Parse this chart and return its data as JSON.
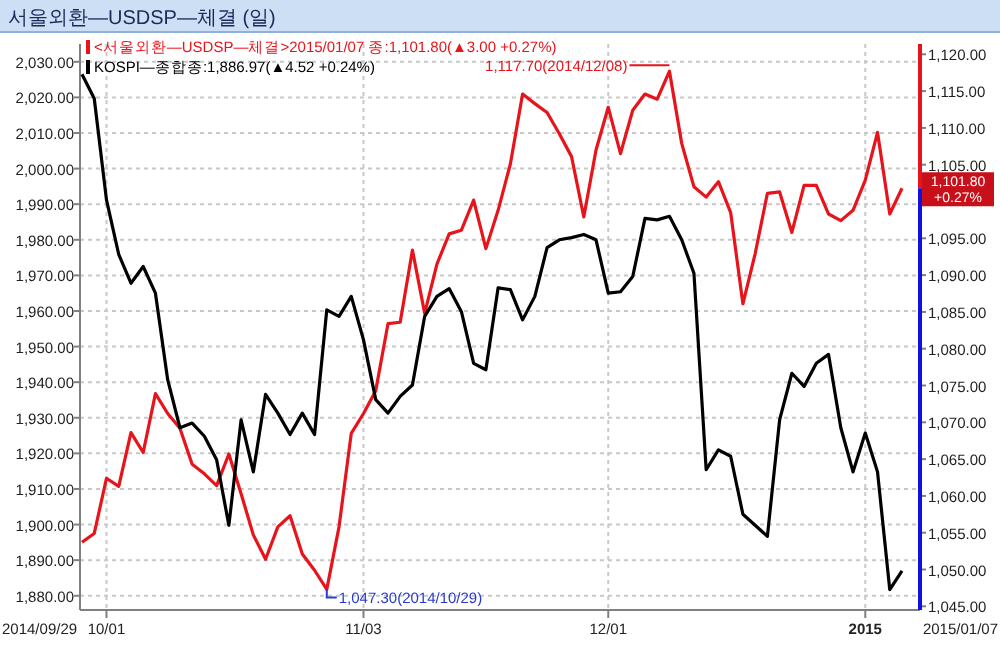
{
  "chart_data": {
    "type": "line",
    "title": "서울외환—USDSP—체결 (일)",
    "categories": [
      null,
      null,
      "10/01",
      null,
      null,
      null,
      null,
      null,
      null,
      null,
      null,
      null,
      null,
      null,
      null,
      null,
      null,
      null,
      null,
      null,
      null,
      null,
      null,
      "11/03",
      null,
      null,
      null,
      null,
      null,
      null,
      null,
      null,
      null,
      null,
      null,
      null,
      null,
      null,
      null,
      null,
      null,
      null,
      null,
      "12/01",
      null,
      null,
      null,
      null,
      null,
      null,
      null,
      null,
      null,
      null,
      null,
      null,
      null,
      null,
      null,
      null,
      null,
      null,
      null,
      null,
      "2015",
      null,
      null,
      null
    ],
    "series": [
      {
        "name": "<서울외환—USDSP—체결>",
        "color": "#e8141c",
        "axis": "y2",
        "values": [
          1053.7,
          1054.9,
          1062.4,
          1061.3,
          1068.6,
          1065.9,
          1073.9,
          1071.2,
          1069.2,
          1064.3,
          1063.0,
          1061.4,
          1065.7,
          1060.3,
          1054.7,
          1051.4,
          1055.8,
          1057.3,
          1052.1,
          1049.9,
          1047.3,
          1055.8,
          1068.5,
          1071.2,
          1074.3,
          1083.4,
          1083.6,
          1093.4,
          1084.8,
          1091.5,
          1095.6,
          1096.1,
          1100.2,
          1093.6,
          1098.8,
          1105.1,
          1114.6,
          1113.3,
          1112.1,
          1109.2,
          1106.1,
          1097.9,
          1107.0,
          1112.8,
          1106.5,
          1112.4,
          1114.6,
          1113.9,
          1117.7,
          1107.9,
          1102.0,
          1100.6,
          1102.7,
          1098.5,
          1086.1,
          1092.9,
          1101.1,
          1101.3,
          1095.8,
          1102.2,
          1102.2,
          1098.3,
          1097.4,
          1098.8,
          1102.9,
          1109.4,
          1098.3,
          1101.8
        ]
      },
      {
        "name": "KOSPI—종합",
        "color": "#000000",
        "values": [
          2026.5,
          2019.7,
          1991.2,
          1975.9,
          1967.8,
          1972.5,
          1965.0,
          1940.7,
          1927.2,
          1928.5,
          1924.8,
          1918.2,
          1899.8,
          1929.4,
          1914.8,
          1936.6,
          1931.3,
          1925.3,
          1931.3,
          1925.3,
          1960.3,
          1958.5,
          1964.1,
          1951.9,
          1935.1,
          1931.3,
          1936.0,
          1939.2,
          1958.5,
          1964.1,
          1966.3,
          1959.8,
          1945.3,
          1943.5,
          1966.5,
          1966.0,
          1957.5,
          1964.1,
          1977.8,
          1980.0,
          1980.6,
          1981.5,
          1980.0,
          1965.0,
          1965.4,
          1969.7,
          1986.0,
          1985.6,
          1986.6,
          1980.0,
          1970.6,
          1915.4,
          1921.0,
          1919.2,
          1902.9,
          1899.8,
          1896.7,
          1929.4,
          1942.5,
          1938.8,
          1945.3,
          1947.8,
          1927.2,
          1914.8,
          1925.7,
          1914.8,
          1881.7,
          1887.0
        ]
      }
    ],
    "ylim": [
      1876,
      2035
    ],
    "yticks": [
      {
        "value": 1880,
        "label": "1,880.00"
      },
      {
        "value": 1890,
        "label": "1,890.00"
      },
      {
        "value": 1900,
        "label": "1,900.00"
      },
      {
        "value": 1910,
        "label": "1,910.00"
      },
      {
        "value": 1920,
        "label": "1,920.00"
      },
      {
        "value": 1930,
        "label": "1,930.00"
      },
      {
        "value": 1940,
        "label": "1,940.00"
      },
      {
        "value": 1950,
        "label": "1,950.00"
      },
      {
        "value": 1960,
        "label": "1,960.00"
      },
      {
        "value": 1970,
        "label": "1,970.00"
      },
      {
        "value": 1980,
        "label": "1,980.00"
      },
      {
        "value": 1990,
        "label": "1,990.00"
      },
      {
        "value": 2000,
        "label": "2,000.00"
      },
      {
        "value": 2010,
        "label": "2,010.00"
      },
      {
        "value": 2020,
        "label": "2,020.00"
      },
      {
        "value": 2030,
        "label": "2,030.00"
      }
    ],
    "y2lim": [
      1044.5,
      1121.4
    ],
    "y2ticks": [
      {
        "value": 1045,
        "label": "1,045.00"
      },
      {
        "value": 1050,
        "label": "1,050.00"
      },
      {
        "value": 1055,
        "label": "1,055.00"
      },
      {
        "value": 1060,
        "label": "1,060.00"
      },
      {
        "value": 1065,
        "label": "1,065.00"
      },
      {
        "value": 1070,
        "label": "1,070.00"
      },
      {
        "value": 1075,
        "label": "1,075.00"
      },
      {
        "value": 1080,
        "label": "1,080.00"
      },
      {
        "value": 1085,
        "label": "1,085.00"
      },
      {
        "value": 1090,
        "label": "1,090.00"
      },
      {
        "value": 1095,
        "label": "1,095.00"
      },
      {
        "value": 1100,
        "label": null
      },
      {
        "value": 1105,
        "label": "1,105.00"
      },
      {
        "value": 1110,
        "label": "1,110.00"
      },
      {
        "value": 1115,
        "label": "1,115.00"
      },
      {
        "value": 1120,
        "label": "1,120.00"
      }
    ],
    "grid": true,
    "legend": "top left",
    "marker": "none",
    "line_style": "solid",
    "annotations": [
      "2015/01/07 종:1,101.80(▲3.00 +0.27%)",
      "종:1,886.97(▲4.52 +0.24%)",
      "2014/09/29",
      "2015/01/07",
      "1,117.70(2014/12/08)",
      "1,047.30(2014/10/29)",
      "1,101.80 +0.27%"
    ]
  }
}
